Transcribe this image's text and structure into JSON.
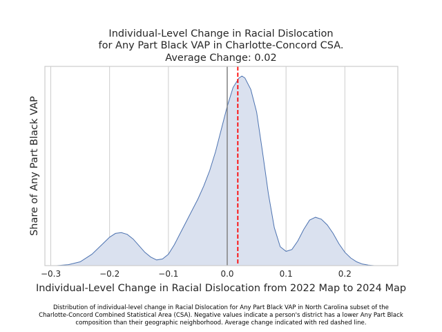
{
  "chart_data": {
    "type": "area",
    "title_lines": [
      "Individual-Level Change in Racial Dislocation",
      "for Any Part Black VAP in Charlotte-Concord CSA.",
      "Average Change: 0.02"
    ],
    "xlabel": "Individual-Level Change in Racial Dislocation from 2022 Map to 2024 Map",
    "ylabel": "Share of Any Part Black VAP",
    "x_ticks": [
      -0.3,
      -0.2,
      -0.1,
      0.0,
      0.1,
      0.2
    ],
    "x_tick_labels": [
      "−0.3",
      "−0.2",
      "−0.1",
      "0.0",
      "0.1",
      "0.2"
    ],
    "xlim": [
      -0.31,
      0.29
    ],
    "ylim": [
      0,
      1.0
    ],
    "y_ticks_shown": false,
    "grid": "vertical",
    "mean_change": 0.018,
    "zero_line": 0.0,
    "colors": {
      "fill": "#dae1ef",
      "line": "#4c72b0",
      "mean_line": "#ff0000",
      "zero_line": "#808080",
      "grid": "#cccccc",
      "frame": "#cccccc"
    },
    "series": [
      {
        "x": [
          -0.29,
          -0.27,
          -0.25,
          -0.23,
          -0.21,
          -0.2,
          -0.19,
          -0.18,
          -0.17,
          -0.16,
          -0.15,
          -0.14,
          -0.13,
          -0.12,
          -0.11,
          -0.1,
          -0.09,
          -0.08,
          -0.07,
          -0.06,
          -0.05,
          -0.04,
          -0.03,
          -0.02,
          -0.01,
          0.0,
          0.01,
          0.02,
          0.025,
          0.03,
          0.04,
          0.05,
          0.06,
          0.07,
          0.08,
          0.09,
          0.1,
          0.11,
          0.12,
          0.13,
          0.14,
          0.15,
          0.16,
          0.17,
          0.18,
          0.19,
          0.2,
          0.21,
          0.22,
          0.23,
          0.24,
          0.25,
          0.26
        ],
        "y": [
          0.0,
          0.005,
          0.02,
          0.06,
          0.12,
          0.15,
          0.17,
          0.174,
          0.165,
          0.14,
          0.105,
          0.07,
          0.045,
          0.03,
          0.035,
          0.06,
          0.11,
          0.17,
          0.23,
          0.29,
          0.35,
          0.42,
          0.5,
          0.6,
          0.72,
          0.84,
          0.94,
          0.99,
          1.0,
          0.99,
          0.93,
          0.81,
          0.6,
          0.38,
          0.2,
          0.1,
          0.075,
          0.085,
          0.13,
          0.19,
          0.24,
          0.255,
          0.245,
          0.215,
          0.17,
          0.115,
          0.07,
          0.04,
          0.02,
          0.008,
          0.003,
          0.0,
          0.0
        ]
      }
    ]
  },
  "caption_lines": [
    "Distribution of individual-level change in Racial Dislocation for Any Part Black VAP in North Carolina subset of the",
    "Charlotte-Concord Combined Statistical Area (CSA). Negative values indicate a person's district has a lower Any Part Black",
    "composition than their geographic neighborhood. Average change indicated with red dashed line."
  ]
}
